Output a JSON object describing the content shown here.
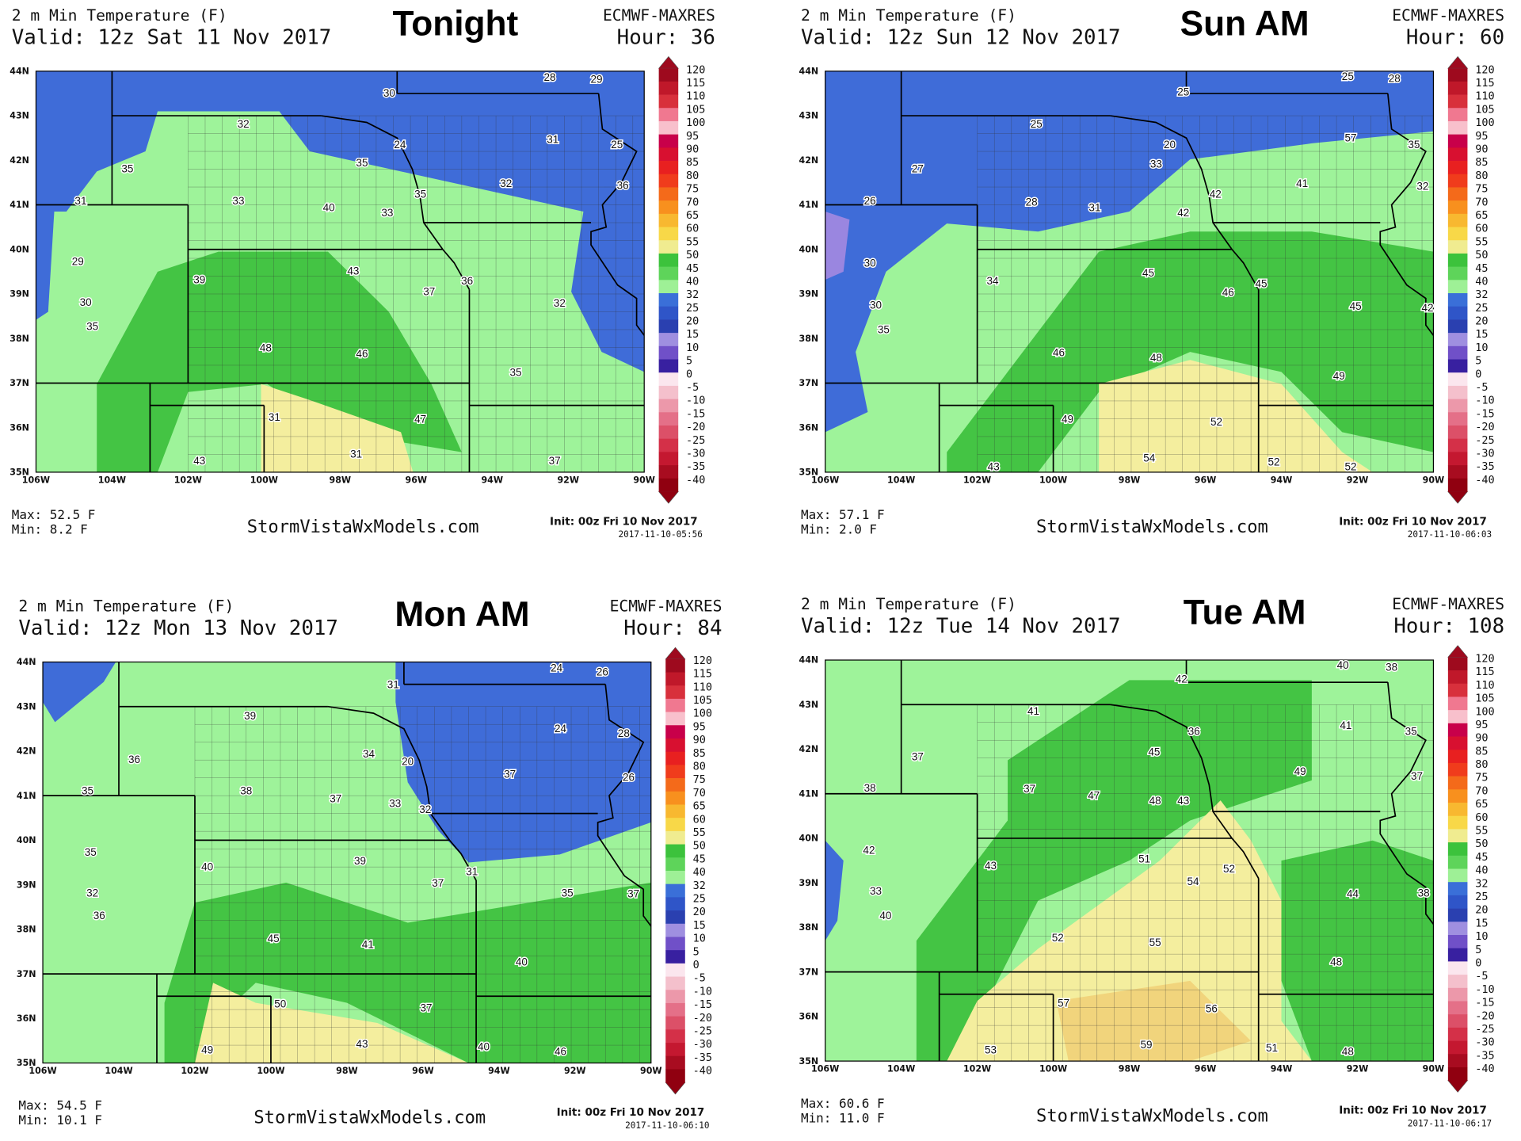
{
  "panels": [
    {
      "title": "2 m Min Temperature (F)",
      "valid": "Valid: 12z Sat 11 Nov 2017",
      "model": "ECMWF-MAXRES",
      "hour": "Hour: 36",
      "heading": "Tonight",
      "max": "Max: 52.5 F",
      "min": "Min: 8.2 F",
      "site": "StormVistaWxModels.com",
      "init": "Init: 00z Fri 10 Nov 2017",
      "stamp": "2017-11-10-05:56",
      "labels": [
        "28",
        "29",
        "30",
        "32",
        "31",
        "25",
        "24",
        "35",
        "35",
        "32",
        "36",
        "33",
        "35",
        "31",
        "40",
        "33",
        "29",
        "43",
        "39",
        "37",
        "36",
        "30",
        "32",
        "35",
        "48",
        "46",
        "35",
        "31",
        "47",
        "31",
        "43",
        "37"
      ]
    },
    {
      "title": "2 m Min Temperature (F)",
      "valid": "Valid: 12z Sun 12 Nov 2017",
      "model": "ECMWF-MAXRES",
      "hour": "Hour: 60",
      "heading": "Sun AM",
      "max": "Max: 57.1 F",
      "min": "Min: 2.0 F",
      "site": "StormVistaWxModels.com",
      "init": "Init: 00z Fri 10 Nov 2017",
      "stamp": "2017-11-10-06:03",
      "labels": [
        "25",
        "28",
        "25",
        "25",
        "57",
        "35",
        "20",
        "33",
        "27",
        "41",
        "32",
        "42",
        "26",
        "28",
        "31",
        "42",
        "30",
        "45",
        "34",
        "45",
        "46",
        "30",
        "45",
        "42",
        "35",
        "46",
        "48",
        "49",
        "49",
        "52",
        "52",
        "54",
        "52",
        "43"
      ]
    },
    {
      "title": "2 m Min Temperature (F)",
      "valid": "Valid: 12z Mon 13 Nov 2017",
      "model": "ECMWF-MAXRES",
      "hour": "Hour: 84",
      "heading": "Mon AM",
      "max": "Max: 54.5 F",
      "min": "Min: 10.1 F",
      "site": "StormVistaWxModels.com",
      "init": "Init: 00z Fri 10 Nov 2017",
      "stamp": "2017-11-10-06:10",
      "labels": [
        "24",
        "26",
        "31",
        "39",
        "24",
        "28",
        "36",
        "34",
        "20",
        "37",
        "26",
        "35",
        "38",
        "37",
        "32",
        "33",
        "35",
        "39",
        "40",
        "31",
        "37",
        "35",
        "37",
        "32",
        "36",
        "45",
        "41",
        "40",
        "50",
        "37",
        "49",
        "43",
        "40",
        "46"
      ]
    },
    {
      "title": "2 m Min Temperature (F)",
      "valid": "Valid: 12z Tue 14 Nov 2017",
      "model": "ECMWF-MAXRES",
      "hour": "Hour: 108",
      "heading": "Tue AM",
      "max": "Max: 60.6 F",
      "min": "Min: 11.0 F",
      "site": "StormVistaWxModels.com",
      "init": "Init: 00z Fri 10 Nov 2017",
      "stamp": "2017-11-10-06:17",
      "labels": [
        "40",
        "38",
        "42",
        "41",
        "41",
        "35",
        "36",
        "45",
        "37",
        "49",
        "37",
        "38",
        "37",
        "47",
        "43",
        "48",
        "42",
        "51",
        "52",
        "43",
        "54",
        "33",
        "44",
        "38",
        "40",
        "52",
        "55",
        "48",
        "57",
        "56",
        "53",
        "59",
        "51",
        "48"
      ]
    }
  ],
  "lat_labels": [
    "44N",
    "43N",
    "42N",
    "41N",
    "40N",
    "39N",
    "38N",
    "37N",
    "36N",
    "35N"
  ],
  "lon_labels": [
    "106W",
    "104W",
    "102W",
    "100W",
    "98W",
    "96W",
    "94W",
    "92W",
    "90W"
  ],
  "colorbar": {
    "labels": [
      "120",
      "115",
      "110",
      "105",
      "100",
      "95",
      "90",
      "85",
      "80",
      "75",
      "70",
      "65",
      "60",
      "55",
      "50",
      "45",
      "40",
      "32",
      "25",
      "20",
      "15",
      "10",
      "5",
      "0",
      "-5",
      "-10",
      "-15",
      "-20",
      "-25",
      "-30",
      "-35",
      "-40"
    ],
    "colors": [
      "#9e0a1e",
      "#c0182a",
      "#d8303c",
      "#f07890",
      "#f8c0cc",
      "#c8004a",
      "#d81030",
      "#e82020",
      "#f03c1c",
      "#f46a1a",
      "#f8901e",
      "#f8b830",
      "#f8d848",
      "#f0ec90",
      "#3cc23c",
      "#5ed45a",
      "#9ef096",
      "#3a6fd8",
      "#2f55c8",
      "#2a40b0",
      "#9f8fe0",
      "#7050c8",
      "#3820a0",
      "#fbe6ee",
      "#f4c0cc",
      "#ec98aa",
      "#e47088",
      "#dc5068",
      "#d43048",
      "#c41830",
      "#a80c20",
      "#900010"
    ]
  }
}
